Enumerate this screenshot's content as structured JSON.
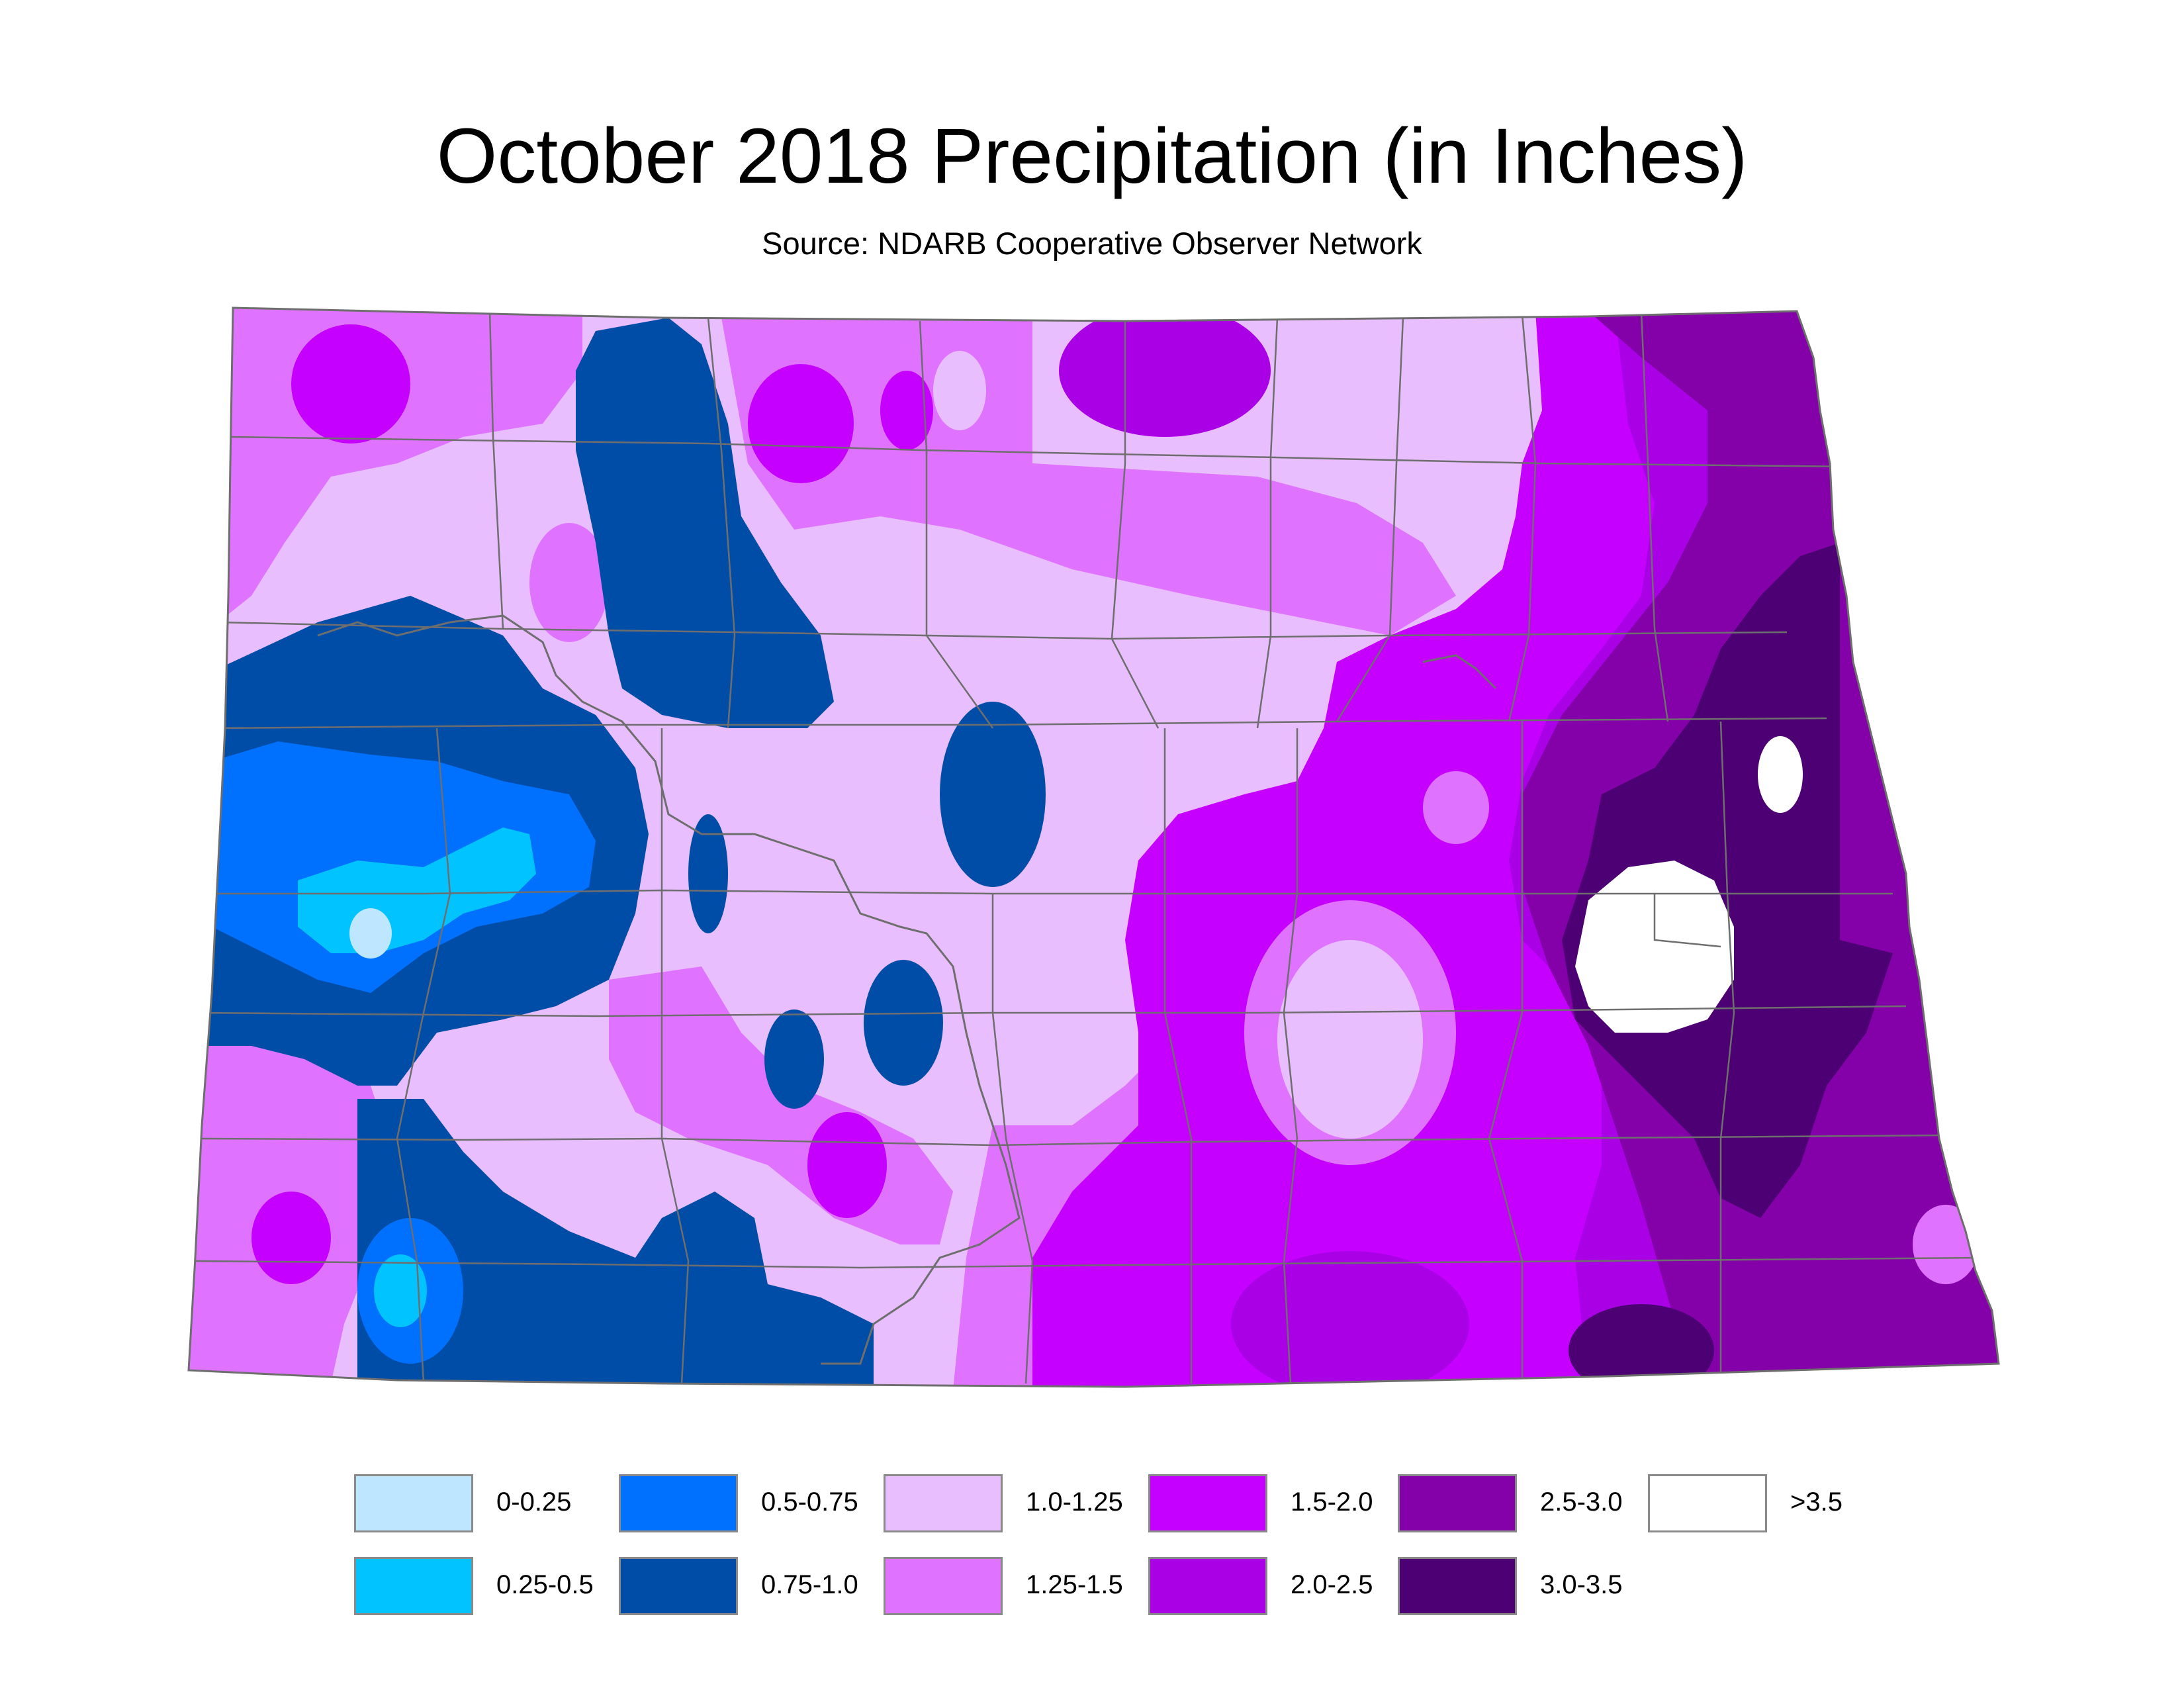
{
  "title": "October 2018 Precipitation (in Inches)",
  "subtitle": "Source: NDARB Cooperative Observer Network",
  "legend": [
    {
      "label": "0-0.25",
      "color": "#bfe6ff"
    },
    {
      "label": "0.25-0.5",
      "color": "#00c3ff"
    },
    {
      "label": "0.5-0.75",
      "color": "#0070ff"
    },
    {
      "label": "0.75-1.0",
      "color": "#004da8"
    },
    {
      "label": "1.0-1.25",
      "color": "#e8beff"
    },
    {
      "label": "1.25-1.5",
      "color": "#df73ff"
    },
    {
      "label": "1.5-2.0",
      "color": "#c500ff"
    },
    {
      "label": "2.0-2.5",
      "color": "#a900e6"
    },
    {
      "label": "2.5-3.0",
      "color": "#8400a8"
    },
    {
      "label": "3.0-3.5",
      "color": "#4c0073"
    },
    {
      "label": ">3.5",
      "color": "#ffffff"
    }
  ]
}
